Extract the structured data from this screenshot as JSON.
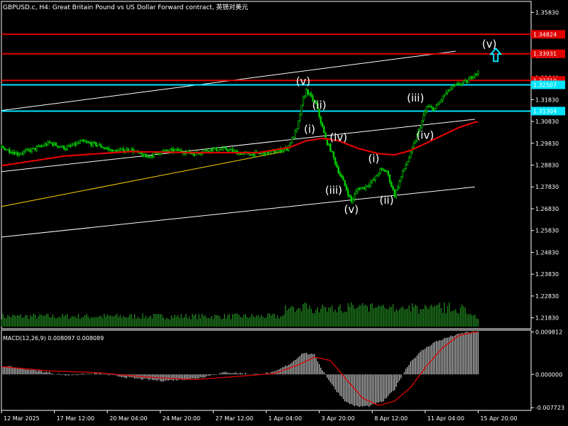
{
  "title": "GBPUSD.c, H4:  Great Britain Pound vs US Dollar Forward contract, 英镑对美元",
  "macd_title": "MACD(12,26,9) 0.008097 0.008089",
  "colors": {
    "background": "#000000",
    "frame": "#ffffff",
    "candle_up": "#00cc00",
    "candle_down": "#00cc00",
    "volume": "#228b22",
    "ma": "#e00000",
    "resistance": "#e00000",
    "support": "#00e5ff",
    "channel": "#ffffff",
    "yellow_line": "#ffd200",
    "arrow": "#00e5ff",
    "macd_hist": "#c0c0c0",
    "macd_signal": "#e00000"
  },
  "chart_data": {
    "type": "candlestick",
    "symbol": "GBPUSD.c",
    "timeframe": "H4",
    "y_ticks": [
      "1.35830",
      "1.34820",
      "1.33830",
      "1.32840",
      "1.31830",
      "1.30830",
      "1.29830",
      "1.28830",
      "1.27830",
      "1.26830",
      "1.25830",
      "1.24830",
      "1.23830",
      "1.22830",
      "1.21830"
    ],
    "ylim": [
      1.2133,
      1.3633
    ],
    "x_ticks": [
      "12 Mar 2025",
      "17 Mar 12:00",
      "20 Mar 04:00",
      "24 Mar 20:00",
      "27 Mar 12:00",
      "1 Apr 04:00",
      "3 Apr 20:00",
      "8 Apr 12:00",
      "11 Apr 04:00",
      "15 Apr 20:00"
    ],
    "price_path_bars": [
      0,
      10,
      20,
      30,
      40,
      50,
      60,
      70,
      80,
      90,
      100,
      110,
      120,
      130,
      140,
      150,
      160,
      170,
      178,
      184,
      188,
      190,
      196,
      202,
      205,
      210,
      214,
      218,
      222,
      226,
      232,
      236,
      240,
      245,
      250,
      255,
      260,
      265,
      270,
      276,
      280,
      285,
      290,
      295
    ],
    "price_path_values": [
      1.2965,
      1.2935,
      1.2955,
      1.2985,
      1.296,
      1.299,
      1.2975,
      1.2945,
      1.2955,
      1.292,
      1.2945,
      1.295,
      1.2935,
      1.2955,
      1.2955,
      1.2935,
      1.2935,
      1.2945,
      1.296,
      1.3045,
      1.3185,
      1.3225,
      1.316,
      1.3,
      1.2955,
      1.2855,
      1.279,
      1.2715,
      1.2775,
      1.278,
      1.2815,
      1.286,
      1.2855,
      1.2745,
      1.285,
      1.2935,
      1.304,
      1.315,
      1.314,
      1.3205,
      1.3235,
      1.3255,
      1.3265,
      1.3305
    ],
    "ma_path_bars": [
      0,
      40,
      80,
      120,
      160,
      180,
      190,
      200,
      210,
      222,
      235,
      245,
      255,
      265,
      275,
      285,
      295
    ],
    "ma_path_values": [
      1.288,
      1.2925,
      1.2945,
      1.294,
      1.294,
      1.2965,
      1.2995,
      1.3005,
      1.2995,
      1.296,
      1.2935,
      1.293,
      1.295,
      1.2985,
      1.302,
      1.3055,
      1.308
    ],
    "horizontal_levels": [
      {
        "value": 1.34824,
        "label": "1.34824",
        "kind": "resistance"
      },
      {
        "value": 1.33931,
        "label": "1.33931",
        "kind": "resistance"
      },
      {
        "value": 1.3271,
        "label": "1.32710",
        "kind": "resistance"
      },
      {
        "value": 1.32507,
        "label": "1.32507",
        "kind": "support"
      },
      {
        "value": 1.31304,
        "label": "1.31304",
        "kind": "support"
      }
    ],
    "wave_labels": [
      {
        "text": "(v)",
        "bar": 188,
        "value": 1.3251
      },
      {
        "text": "(ii)",
        "bar": 198,
        "value": 1.3141
      },
      {
        "text": "(i)",
        "bar": 192,
        "value": 1.3031
      },
      {
        "text": "(iv)",
        "bar": 210,
        "value": 1.2994
      },
      {
        "text": "(iii)",
        "bar": 207,
        "value": 1.2752
      },
      {
        "text": "(v)",
        "bar": 218,
        "value": 1.2663
      },
      {
        "text": "(i)",
        "bar": 232,
        "value": 1.2896
      },
      {
        "text": "(ii)",
        "bar": 240,
        "value": 1.2706
      },
      {
        "text": "(iii)",
        "bar": 258,
        "value": 1.3175
      },
      {
        "text": "(iv)",
        "bar": 264,
        "value": 1.3004
      },
      {
        "text": "(v)",
        "bar": 304,
        "value": 1.3422
      }
    ],
    "macd_ticks": [
      "0.009812",
      "0.000000",
      "-0.007723"
    ],
    "macd_ylim": [
      -0.00835,
      0.01025
    ],
    "macd_hist_bars": [
      0,
      20,
      40,
      60,
      80,
      100,
      120,
      140,
      160,
      170,
      180,
      188,
      195,
      200,
      208,
      215,
      222,
      230,
      238,
      245,
      250,
      255,
      262,
      270,
      280,
      290,
      295
    ],
    "macd_hist_values": [
      0.002,
      0.001,
      -0.0002,
      0.0002,
      -0.0008,
      -0.0015,
      -0.001,
      0.0005,
      0.0,
      0.0005,
      0.0025,
      0.005,
      0.0045,
      0.001,
      -0.0035,
      -0.0065,
      -0.0075,
      -0.0073,
      -0.0062,
      -0.0035,
      0.0,
      0.003,
      0.0055,
      0.0075,
      0.0088,
      0.0098,
      0.0098
    ],
    "macd_signal_bars": [
      0,
      30,
      60,
      90,
      120,
      150,
      170,
      185,
      195,
      205,
      215,
      225,
      235,
      245,
      255,
      265,
      275,
      285,
      295
    ],
    "macd_signal_values": [
      0.0018,
      0.0008,
      0.0004,
      -0.0006,
      -0.0012,
      -0.0004,
      0.0002,
      0.0022,
      0.004,
      0.0032,
      -0.0012,
      -0.0055,
      -0.0072,
      -0.0062,
      -0.003,
      0.002,
      0.0062,
      0.009,
      0.0098
    ]
  }
}
